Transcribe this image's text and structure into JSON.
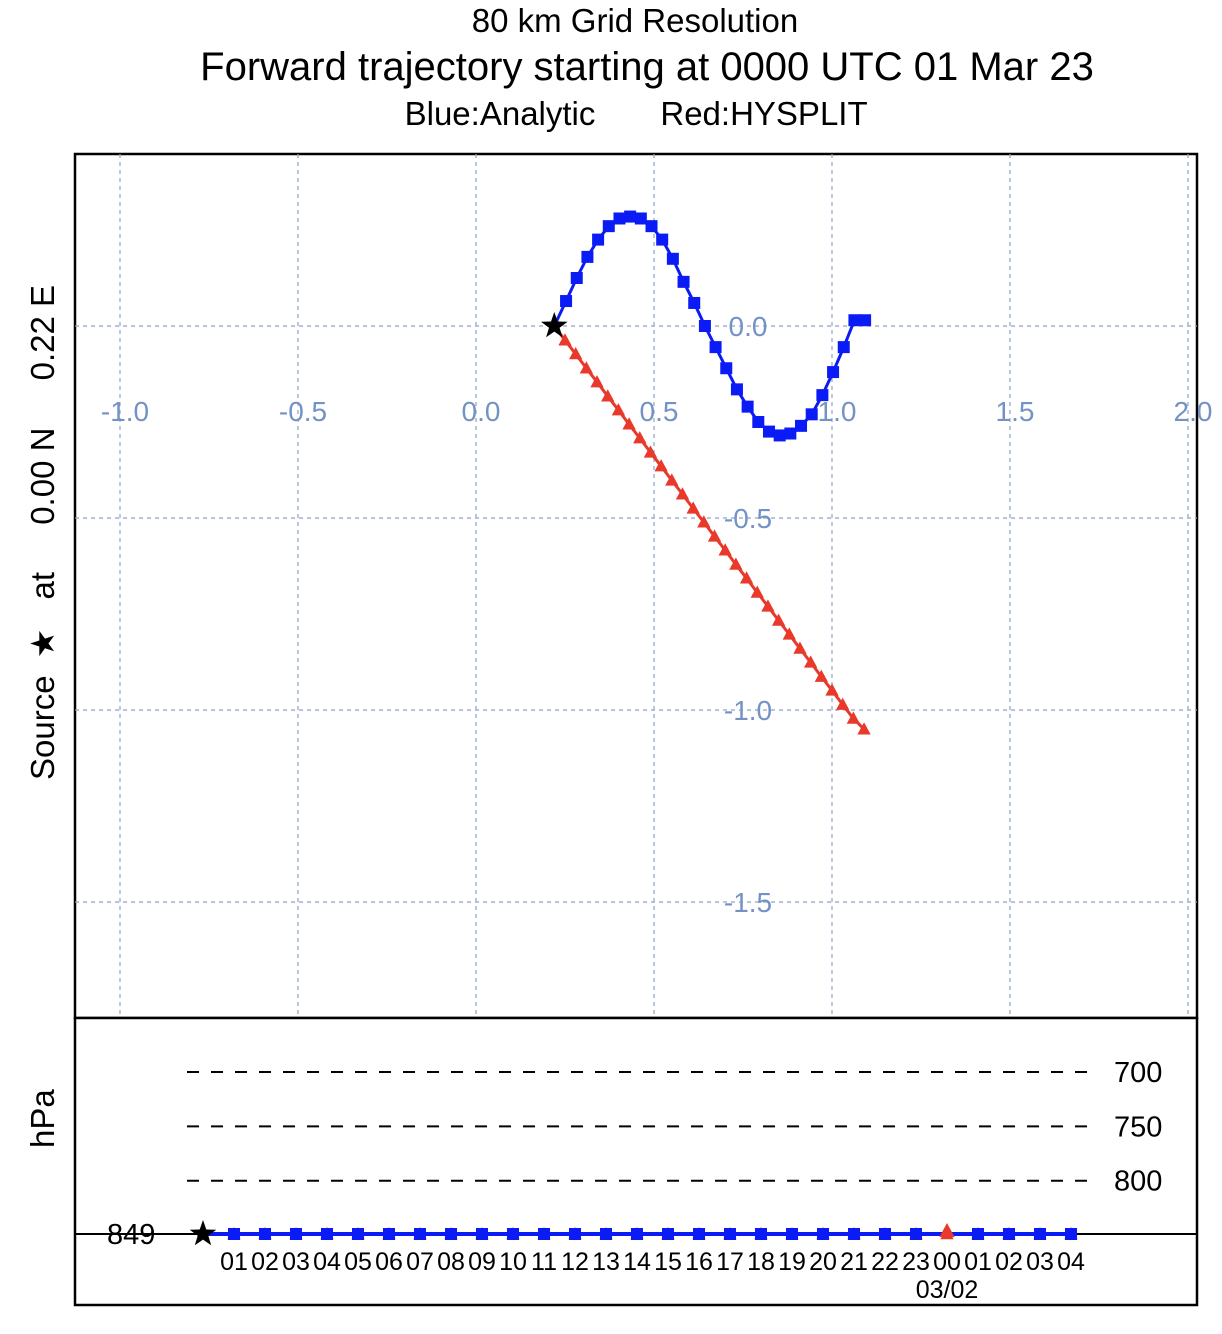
{
  "header": {
    "line1": "80 km Grid Resolution",
    "line2": "Forward trajectory starting at 0000 UTC 01 Mar 23",
    "line3_blue": "Blue:Analytic",
    "line3_red": "Red:HYSPLIT"
  },
  "side_label": {
    "part1": "Source",
    "star": "★",
    "part2": "at",
    "lat": "0.00 N",
    "lon": "0.22 E"
  },
  "colors": {
    "analytic": "#0a1bf5",
    "hysplit": "#e8392b",
    "grid": "#8aa5c8",
    "grid_label": "#7393c4"
  },
  "chart_data": [
    {
      "type": "line",
      "panel": "horizontal map",
      "title": "",
      "xlabel": "",
      "ylabel": "",
      "xlim": [
        -1.13,
        2.03
      ],
      "ylim": [
        -1.8,
        0.45
      ],
      "grid": true,
      "x_ticks": [
        -1.0,
        -0.5,
        0.0,
        0.5,
        1.0,
        1.5,
        2.0
      ],
      "x_tick_labels": [
        "-1.0",
        "-0.5",
        "0.0",
        "0.5",
        "1.0",
        "1.5",
        "2.0"
      ],
      "y_ticks": [
        0.0,
        -0.5,
        -1.0,
        -1.5
      ],
      "y_tick_labels": [
        "0.0",
        "-0.5",
        "-1.0",
        "-1.5"
      ],
      "source": {
        "x": 0.22,
        "y": 0.0
      },
      "series": [
        {
          "name": "Analytic",
          "color": "#0a1bf5",
          "marker": "square",
          "x": [
            0.22,
            0.253,
            0.283,
            0.313,
            0.343,
            0.373,
            0.403,
            0.433,
            0.463,
            0.493,
            0.523,
            0.553,
            0.583,
            0.613,
            0.643,
            0.673,
            0.703,
            0.733,
            0.763,
            0.793,
            0.823,
            0.853,
            0.883,
            0.913,
            0.943,
            0.973,
            1.003,
            1.033,
            1.063,
            1.093
          ],
          "y": [
            0.0,
            0.065,
            0.125,
            0.18,
            0.225,
            0.26,
            0.28,
            0.285,
            0.28,
            0.26,
            0.225,
            0.175,
            0.115,
            0.06,
            0.0,
            -0.055,
            -0.11,
            -0.165,
            -0.21,
            -0.25,
            -0.275,
            -0.285,
            -0.28,
            -0.26,
            -0.23,
            -0.18,
            -0.12,
            -0.055,
            0.015,
            0.015
          ]
        },
        {
          "name": "HYSPLIT",
          "color": "#e8392b",
          "marker": "triangle",
          "x": [
            0.22,
            0.25,
            0.28,
            0.31,
            0.34,
            0.37,
            0.4,
            0.43,
            0.46,
            0.49,
            0.52,
            0.55,
            0.58,
            0.61,
            0.64,
            0.67,
            0.7,
            0.73,
            0.76,
            0.79,
            0.82,
            0.85,
            0.88,
            0.91,
            0.94,
            0.97,
            1.0,
            1.03,
            1.06,
            1.09
          ],
          "y": [
            0.0,
            -0.037,
            -0.073,
            -0.11,
            -0.146,
            -0.183,
            -0.219,
            -0.256,
            -0.292,
            -0.329,
            -0.365,
            -0.402,
            -0.438,
            -0.475,
            -0.511,
            -0.548,
            -0.584,
            -0.621,
            -0.657,
            -0.694,
            -0.73,
            -0.767,
            -0.803,
            -0.84,
            -0.876,
            -0.913,
            -0.949,
            -0.986,
            -1.022,
            -1.05
          ]
        }
      ]
    },
    {
      "type": "line",
      "panel": "vertical profile",
      "title": "",
      "xlabel": "",
      "ylabel": "hPa",
      "grid": true,
      "pressure_levels": [
        "700",
        "750",
        "800"
      ],
      "pressure_values": [
        700,
        750,
        800
      ],
      "source_level_label": "849",
      "source_level": 849,
      "ylim": [
        890,
        650
      ],
      "hour_labels": [
        "01",
        "02",
        "03",
        "04",
        "05",
        "06",
        "07",
        "08",
        "09",
        "10",
        "11",
        "12",
        "13",
        "14",
        "15",
        "16",
        "17",
        "18",
        "19",
        "20",
        "21",
        "22",
        "23",
        "00",
        "01",
        "02",
        "03",
        "04"
      ],
      "date_label": "03/02",
      "date_label_hour_index": 23,
      "series": [
        {
          "name": "Analytic",
          "color": "#0a1bf5",
          "marker": "square",
          "hours": [
            1,
            2,
            3,
            4,
            5,
            6,
            7,
            8,
            9,
            10,
            11,
            12,
            13,
            14,
            15,
            16,
            17,
            18,
            19,
            20,
            21,
            22,
            23,
            24,
            25,
            26,
            27,
            28
          ],
          "pressure": [
            849,
            849,
            849,
            849,
            849,
            849,
            849,
            849,
            849,
            849,
            849,
            849,
            849,
            849,
            849,
            849,
            849,
            849,
            849,
            849,
            849,
            849,
            849,
            849,
            849,
            849,
            849,
            849
          ]
        },
        {
          "name": "HYSPLIT",
          "color": "#e8392b",
          "marker": "triangle",
          "hours": [
            1,
            2,
            3,
            4,
            5,
            6,
            7,
            8,
            9,
            10,
            11,
            12,
            13,
            14,
            15,
            16,
            17,
            18,
            19,
            20,
            21,
            22,
            23,
            24,
            25,
            26,
            27,
            28
          ],
          "pressure": [
            849,
            849,
            849,
            849,
            849,
            849,
            849,
            849,
            849,
            849,
            849,
            849,
            849,
            849,
            849,
            849,
            849,
            849,
            849,
            849,
            849,
            849,
            849,
            849,
            849,
            849,
            849,
            849
          ]
        }
      ]
    }
  ]
}
